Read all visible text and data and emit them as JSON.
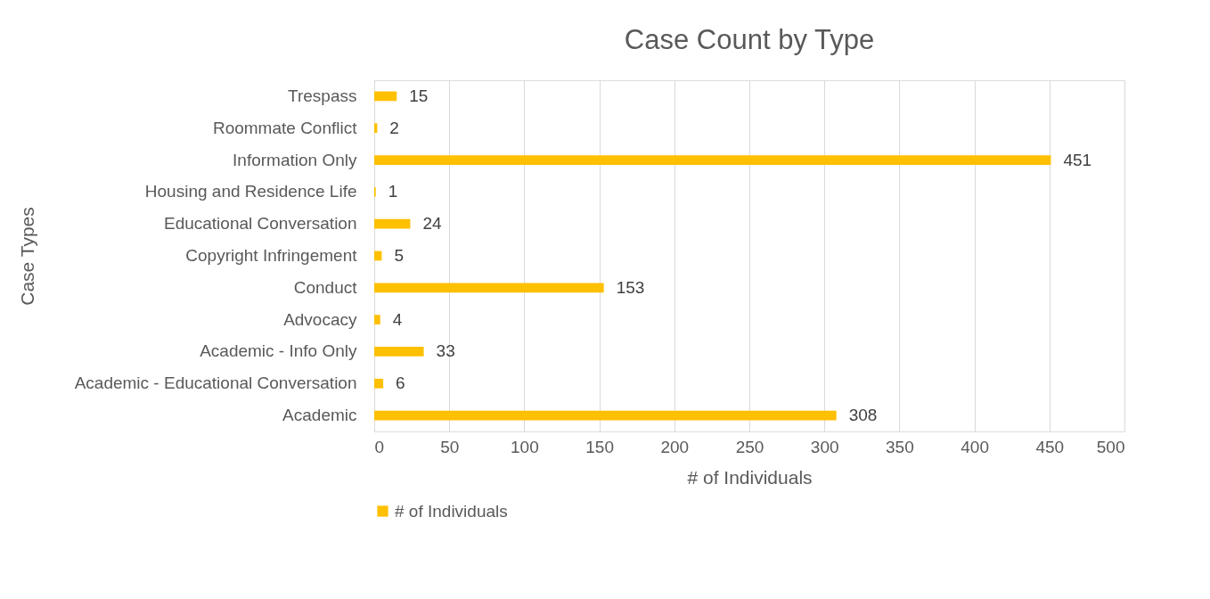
{
  "chart_data": {
    "type": "bar",
    "orientation": "horizontal",
    "title": "Case Count by Type",
    "xlabel": "# of Individuals",
    "ylabel": "Case Types",
    "categories": [
      "Trespass",
      "Roommate Conflict",
      "Information Only",
      "Housing and Residence Life",
      "Educational Conversation",
      "Copyright Infringement",
      "Conduct",
      "Advocacy",
      "Academic - Info Only",
      "Academic - Educational Conversation",
      "Academic"
    ],
    "series": [
      {
        "name": "# of Individuals",
        "color": "#ffc000",
        "values": [
          15,
          2,
          451,
          1,
          24,
          5,
          153,
          4,
          33,
          6,
          308
        ]
      }
    ],
    "xlim": [
      0,
      500
    ],
    "xticks": [
      0,
      50,
      100,
      150,
      200,
      250,
      300,
      350,
      400,
      450,
      500
    ],
    "grid": "x",
    "legend": "bottom",
    "data_labels": true
  }
}
